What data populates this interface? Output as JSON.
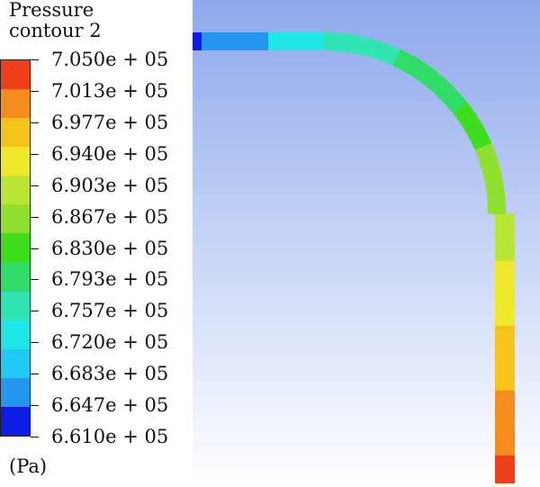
{
  "legend": {
    "title_line1": "Pressure",
    "title_line2": "contour 2",
    "unit": "(Pa)",
    "ticks": [
      "7.050e + 05",
      "7.013e + 05",
      "6.977e + 05",
      "6.940e + 05",
      "6.903e + 05",
      "6.867e + 05",
      "6.830e + 05",
      "6.793e + 05",
      "6.757e + 05",
      "6.720e + 05",
      "6.683e + 05",
      "6.647e + 05",
      "6.610e + 05"
    ],
    "band_colors": [
      "#f0401a",
      "#f48c1e",
      "#f6c31b",
      "#eee92a",
      "#bce637",
      "#90e12f",
      "#3edd1e",
      "#2fdc66",
      "#31e5b3",
      "#20e6e6",
      "#21c8f2",
      "#2596ee",
      "#0c1ee5"
    ]
  },
  "viewport": {
    "background_top": "#8ea8ec",
    "background_bottom": "#ffffff"
  }
}
